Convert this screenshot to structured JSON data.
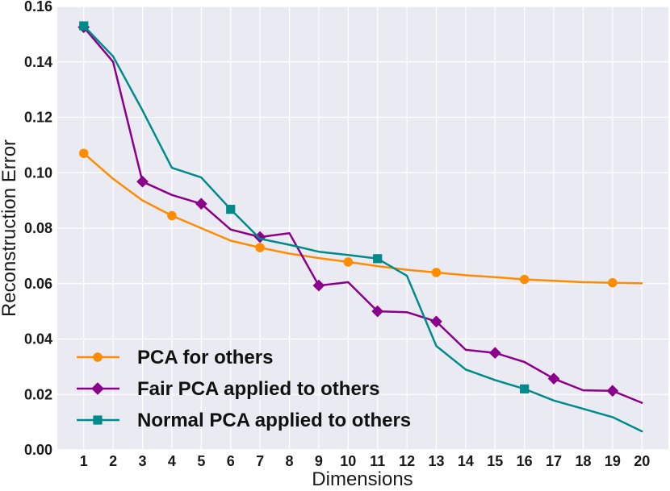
{
  "chart_data": {
    "type": "line",
    "title": "",
    "xlabel": "Dimensions",
    "ylabel": "Reconstruction Error",
    "x": [
      1,
      2,
      3,
      4,
      5,
      6,
      7,
      8,
      9,
      10,
      11,
      12,
      13,
      14,
      15,
      16,
      17,
      18,
      19,
      20
    ],
    "xlim": [
      0.1,
      20.9
    ],
    "ylim": [
      0,
      0.16
    ],
    "yticks": [
      0.0,
      0.02,
      0.04,
      0.06,
      0.08,
      0.1,
      0.12,
      0.14,
      0.16
    ],
    "ytick_labels": [
      "0.00",
      "0.02",
      "0.04",
      "0.06",
      "0.08",
      "0.10",
      "0.12",
      "0.14",
      "0.16"
    ],
    "xtick_labels": [
      "1",
      "2",
      "3",
      "4",
      "5",
      "6",
      "7",
      "8",
      "9",
      "10",
      "11",
      "12",
      "13",
      "14",
      "15",
      "16",
      "17",
      "18",
      "19",
      "20"
    ],
    "grid": true,
    "legend_position": "bottom-left",
    "series": [
      {
        "name": "PCA for others",
        "color": "#ff8c00",
        "marker": "circle",
        "values": [
          0.107,
          0.0978,
          0.09,
          0.0845,
          0.08,
          0.0755,
          0.073,
          0.0708,
          0.0692,
          0.0678,
          0.0663,
          0.065,
          0.064,
          0.063,
          0.0623,
          0.0615,
          0.061,
          0.0605,
          0.0603,
          0.0601
        ],
        "marker_x": [
          1,
          4,
          7,
          10,
          13,
          16,
          19
        ]
      },
      {
        "name": "Fair PCA applied to others",
        "color": "#8b008b",
        "marker": "diamond",
        "values": [
          0.1525,
          0.14,
          0.0968,
          0.092,
          0.0888,
          0.0795,
          0.0768,
          0.0782,
          0.0593,
          0.0605,
          0.05,
          0.0497,
          0.0463,
          0.0361,
          0.035,
          0.0317,
          0.0257,
          0.0215,
          0.0213,
          0.017
        ],
        "marker_x": [
          1,
          3,
          5,
          7,
          9,
          11,
          13,
          15,
          17,
          19
        ]
      },
      {
        "name": "Normal PCA applied to others",
        "color": "#008b8b",
        "marker": "square",
        "values": [
          0.153,
          0.142,
          0.1225,
          0.1018,
          0.0983,
          0.0868,
          0.0762,
          0.074,
          0.0715,
          0.0703,
          0.069,
          0.0628,
          0.0375,
          0.029,
          0.0252,
          0.022,
          0.0178,
          0.0148,
          0.0118,
          0.0067
        ],
        "marker_x": [
          1,
          6,
          11,
          16
        ]
      }
    ]
  }
}
